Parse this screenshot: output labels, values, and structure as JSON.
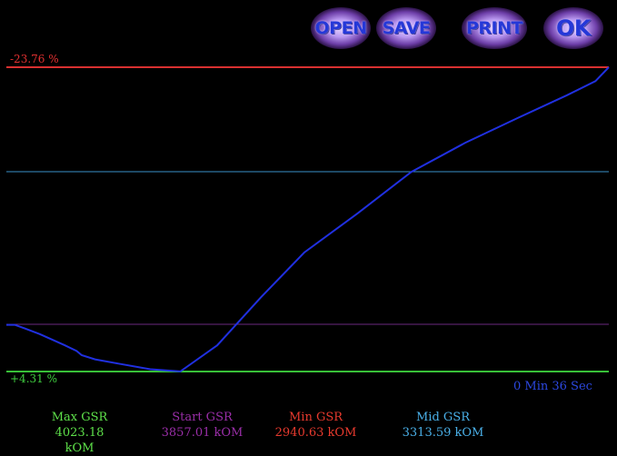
{
  "buttons": {
    "open": "OPEN",
    "save": "SAVE",
    "print": "PRINT",
    "ok": "OK"
  },
  "scale": {
    "top_percent": "-23.76 %",
    "bottom_percent": "+4.31 %"
  },
  "elapsed": "0 Min  36 Sec",
  "stats": {
    "max": {
      "label": "Max GSR",
      "value": "4023.18 kOM"
    },
    "start": {
      "label": "Start GSR",
      "value": "3857.01 kOM"
    },
    "min": {
      "label": "Min GSR",
      "value": "2940.63 kOM"
    },
    "mid": {
      "label": "Mid GSR",
      "value": "3313.59 kOM"
    }
  },
  "colors": {
    "min_line": "#d83030",
    "mid_line": "#3a8fc8",
    "start_line": "#6a2a80",
    "max_line": "#38c038",
    "trace": "#2030e0"
  },
  "chart_data": {
    "type": "line",
    "y_unit": "kOM",
    "reference_lines": {
      "min": 2940.63,
      "mid": 3313.59,
      "start": 3857.01,
      "max": 4023.18
    },
    "duration_sec": 36,
    "series": [
      {
        "x": [
          0,
          0.5,
          1.1,
          2.0,
          3.5,
          4.2,
          4.5,
          5.3,
          6.7,
          8.6,
          10.4,
          12.6,
          15.2,
          17.8,
          21.0,
          24.2,
          27.4,
          30.6,
          33.5,
          35.2,
          36
        ],
        "values": [
          3857,
          3857,
          3870,
          3890,
          3930,
          3950,
          3965,
          3980,
          3995,
          4015,
          4023,
          3930,
          3760,
          3600,
          3460,
          3313,
          3210,
          3120,
          3040,
          2990,
          2940.63
        ]
      }
    ]
  }
}
